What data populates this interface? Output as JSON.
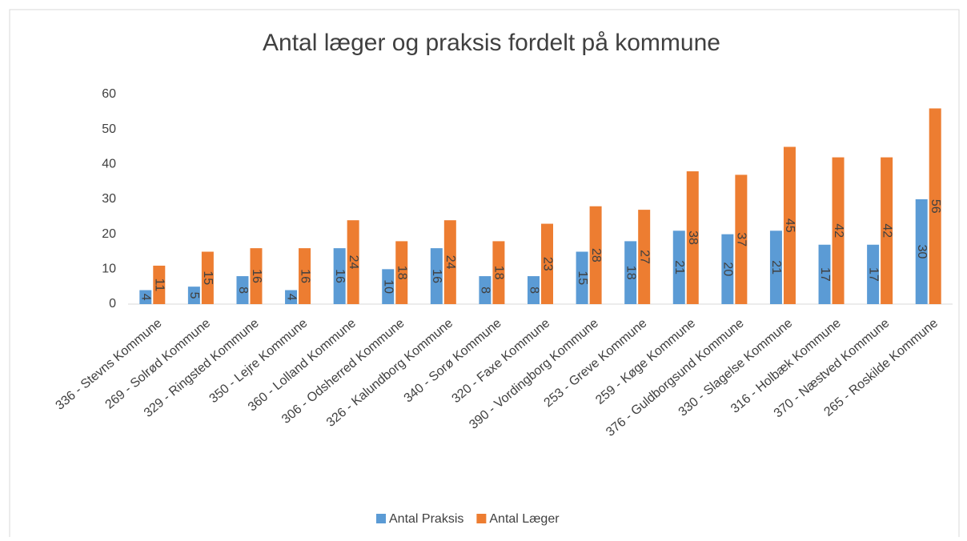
{
  "chart_data": {
    "type": "bar",
    "title": "Antal læger og praksis fordelt på kommune",
    "categories": [
      "336 - Stevns Kommune",
      "269 - Solrød Kommune",
      "329 - Ringsted Kommune",
      "350 - Lejre Kommune",
      "360 - Lolland Kommune",
      "306 - Odsherred Kommune",
      "326 - Kalundborg Kommune",
      "340 - Sorø Kommune",
      "320 - Faxe Kommune",
      "390 - Vordingborg Kommune",
      "253 - Greve Kommune",
      "259 - Køge Kommune",
      "376 - Guldborgsund Kommune",
      "330 - Slagelse Kommune",
      "316 - Holbæk Kommune",
      "370 - Næstved Kommune",
      "265 - Roskilde Kommune"
    ],
    "series": [
      {
        "name": "Antal Praksis",
        "color": "#5b9bd5",
        "values": [
          4,
          5,
          8,
          4,
          16,
          10,
          16,
          8,
          8,
          15,
          18,
          21,
          20,
          21,
          17,
          17,
          30
        ]
      },
      {
        "name": "Antal Læger",
        "color": "#ed7d31",
        "values": [
          11,
          15,
          16,
          16,
          24,
          18,
          24,
          18,
          23,
          28,
          27,
          38,
          37,
          45,
          42,
          42,
          56
        ]
      }
    ],
    "ylim": [
      0,
      60
    ],
    "yticks": [
      0,
      10,
      20,
      30,
      40,
      50,
      60
    ],
    "grid": false,
    "legend": "bottom"
  }
}
